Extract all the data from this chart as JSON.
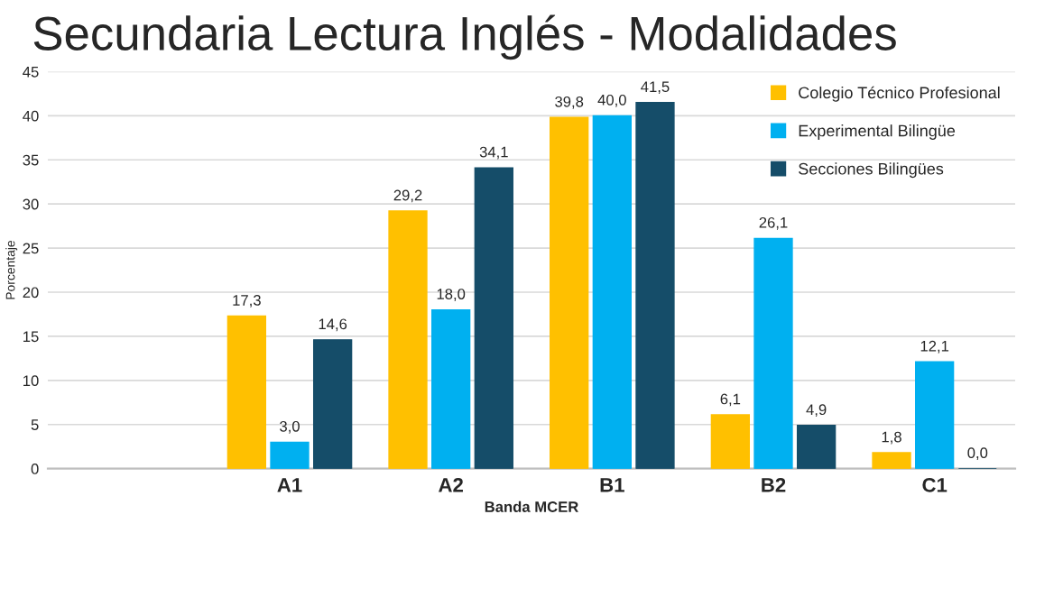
{
  "chart_data": {
    "type": "bar",
    "title": "Secundaria Lectura Inglés - Modalidades",
    "xlabel": "Banda MCER",
    "ylabel": "Porcentaje",
    "categories": [
      null,
      "A1",
      "A2",
      "B1",
      "B2",
      "C1"
    ],
    "series": [
      {
        "name": "Colegio Técnico Profesional",
        "color": "#ffc000",
        "values": [
          null,
          17.3,
          29.2,
          39.8,
          6.1,
          1.8
        ],
        "value_labels": [
          null,
          "17,3",
          "29,2",
          "39,8",
          "6,1",
          "1,8"
        ]
      },
      {
        "name": "Experimental Bilingüe",
        "color": "#00b0f0",
        "values": [
          null,
          3.0,
          18.0,
          40.0,
          26.1,
          12.1
        ],
        "value_labels": [
          null,
          "3,0",
          "18,0",
          "40,0",
          "26,1",
          "12,1"
        ]
      },
      {
        "name": "Secciones Bilingües",
        "color": "#154d69",
        "values": [
          null,
          14.6,
          34.1,
          41.5,
          4.9,
          0.0
        ],
        "value_labels": [
          null,
          "14,6",
          "34,1",
          "41,5",
          "4,9",
          "0,0"
        ]
      }
    ],
    "ylim": [
      0,
      45
    ],
    "yticks": [
      0,
      5,
      10,
      15,
      20,
      25,
      30,
      35,
      40,
      45
    ],
    "grid": "y",
    "legend": "top right"
  }
}
